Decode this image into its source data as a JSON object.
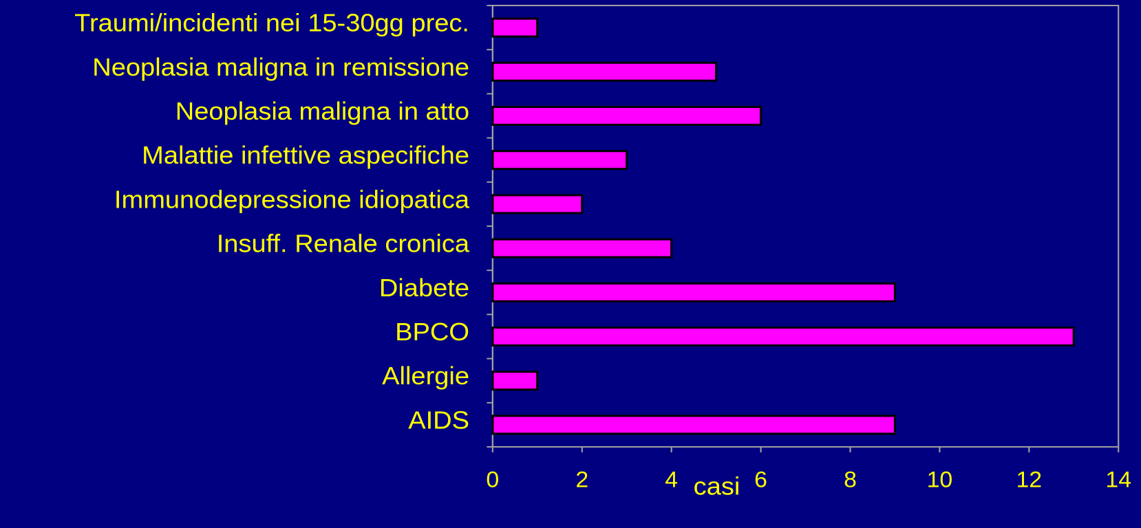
{
  "chart_data": {
    "type": "barh",
    "categories": [
      "Traumi/incidenti nei 15-30gg prec.",
      "Neoplasia maligna in remissione",
      "Neoplasia maligna in atto",
      "Malattie infettive aspecifiche",
      "Immunodepressione idiopatica",
      "Insuff. Renale cronica",
      "Diabete",
      "BPCO",
      "Allergie",
      "AIDS"
    ],
    "values": [
      1,
      5,
      6,
      3,
      2,
      4,
      9,
      13,
      1,
      9
    ],
    "color": "#ff00ff",
    "xlabel": "casi",
    "xlim": [
      0,
      14
    ],
    "xticks": [
      0,
      2,
      4,
      6,
      8,
      10,
      12,
      14
    ]
  }
}
